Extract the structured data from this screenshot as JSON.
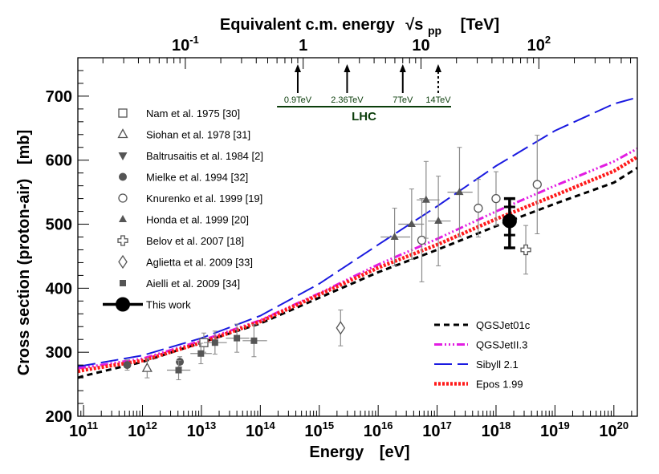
{
  "chart_data": {
    "type": "scatter",
    "title": "",
    "xlabel": "Energy",
    "xlabel_unit": "[eV]",
    "ylabel": "Cross section (proton-air)",
    "ylabel_unit": "[mb]",
    "x_scale": "log",
    "xlim": [
      80000000000.0,
      2.5e+20
    ],
    "ylim": [
      200,
      760
    ],
    "x_ticks": [
      {
        "label": "10",
        "exp": "11",
        "value": 100000000000.0
      },
      {
        "label": "10",
        "exp": "12",
        "value": 1000000000000.0
      },
      {
        "label": "10",
        "exp": "13",
        "value": 10000000000000.0
      },
      {
        "label": "10",
        "exp": "14",
        "value": 100000000000000.0
      },
      {
        "label": "10",
        "exp": "15",
        "value": 1000000000000000.0
      },
      {
        "label": "10",
        "exp": "16",
        "value": 1e+16
      },
      {
        "label": "10",
        "exp": "17",
        "value": 1e+17
      },
      {
        "label": "10",
        "exp": "18",
        "value": 1e+18
      },
      {
        "label": "10",
        "exp": "19",
        "value": 1e+19
      },
      {
        "label": "10",
        "exp": "20",
        "value": 1e+20
      }
    ],
    "y_ticks": [
      {
        "label": "200",
        "value": 200
      },
      {
        "label": "300",
        "value": 300
      },
      {
        "label": "400",
        "value": 400
      },
      {
        "label": "500",
        "value": 500
      },
      {
        "label": "600",
        "value": 600
      },
      {
        "label": "700",
        "value": 700
      }
    ],
    "top_axis": {
      "label": "Equivalent c.m. energy",
      "symbol": "√s",
      "symbol_sub": "pp",
      "unit": "[TeV]",
      "ticks": [
        {
          "label": "10",
          "exp": "-1",
          "tev": 0.1
        },
        {
          "label": "1",
          "exp": "",
          "tev": 1
        },
        {
          "label": "10",
          "exp": "",
          "tev": 10
        },
        {
          "label": "10",
          "exp": "2",
          "tev": 100
        }
      ]
    },
    "lhc": {
      "label": "LHC",
      "color": "#0b3d0b",
      "arrows": [
        {
          "label": "0.9TeV",
          "tev": 0.9,
          "dashed": false
        },
        {
          "label": "2.36TeV",
          "tev": 2.36,
          "dashed": false
        },
        {
          "label": "7TeV",
          "tev": 7,
          "dashed": false
        },
        {
          "label": "14TeV",
          "tev": 14,
          "dashed": true
        }
      ]
    },
    "series": [
      {
        "name": "Nam et al. 1975  [30]",
        "marker": "open-square",
        "color": "#555555",
        "points": [
          {
            "x": 11000000000000.0,
            "y": 315,
            "yerr": 15
          }
        ]
      },
      {
        "name": "Siohan et al. 1978  [31]",
        "marker": "open-triangle",
        "color": "#555555",
        "points": [
          {
            "x": 1200000000000.0,
            "y": 275,
            "yerr": 15
          }
        ]
      },
      {
        "name": "Baltrusaitis et al. 1984  [2]",
        "marker": "filled-triangle-down",
        "color": "#555555",
        "points": []
      },
      {
        "name": "Mielke et al. 1994  [32]",
        "marker": "filled-circle",
        "color": "#555555",
        "points": [
          {
            "x": 550000000000.0,
            "y": 280,
            "yerr": 8
          },
          {
            "x": 4300000000000.0,
            "y": 285,
            "yerr": 8
          }
        ]
      },
      {
        "name": "Knurenko et al. 1999  [19]",
        "marker": "open-circle",
        "color": "#555555",
        "points": [
          {
            "x": 5.5e+16,
            "y": 475,
            "yerr": 65
          },
          {
            "x": 5e+17,
            "y": 525,
            "yerr": 45
          },
          {
            "x": 1e+18,
            "y": 540,
            "yerr": 42
          },
          {
            "x": 5e+18,
            "y": 562,
            "yerr": 77
          }
        ]
      },
      {
        "name": "Honda et al. 1999  [20]",
        "marker": "filled-triangle",
        "color": "#555555",
        "points": [
          {
            "x": 1.9e+16,
            "y": 480,
            "yerr": 45,
            "xlo": 1.1e+16,
            "xhi": 3.5e+16
          },
          {
            "x": 3.7e+16,
            "y": 500,
            "yerr": 55,
            "xlo": 2.2e+16,
            "xhi": 6e+16
          },
          {
            "x": 6.5e+16,
            "y": 538,
            "yerr": 60,
            "xlo": 4.5e+16,
            "xhi": 1.1e+17
          },
          {
            "x": 1.05e+17,
            "y": 505,
            "yerr": 70,
            "xlo": 7e+16,
            "xhi": 1.7e+17
          },
          {
            "x": 2.4e+17,
            "y": 550,
            "yerr": 70,
            "xlo": 1.5e+17,
            "xhi": 4e+17
          }
        ]
      },
      {
        "name": "Belov et al. 2007  [18]",
        "marker": "open-cross",
        "color": "#555555",
        "points": [
          {
            "x": 3.2e+18,
            "y": 460,
            "yerr": 38
          }
        ]
      },
      {
        "name": "Aglietta et al. 2009  [33]",
        "marker": "open-diamond",
        "color": "#555555",
        "points": [
          {
            "x": 2300000000000000.0,
            "y": 338,
            "yerr": 28
          }
        ]
      },
      {
        "name": "Aielli et al. 2009  [34]",
        "marker": "filled-square",
        "color": "#555555",
        "points": [
          {
            "x": 4100000000000.0,
            "y": 272,
            "yerr": 15,
            "xlo": 2600000000000.0,
            "xhi": 6500000000000.0
          },
          {
            "x": 9800000000000.0,
            "y": 298,
            "yerr": 16,
            "xlo": 6500000000000.0,
            "xhi": 15000000000000.0
          },
          {
            "x": 17000000000000.0,
            "y": 315,
            "yerr": 18,
            "xlo": 11000000000000.0,
            "xhi": 27000000000000.0
          },
          {
            "x": 40000000000000.0,
            "y": 322,
            "yerr": 22,
            "xlo": 26000000000000.0,
            "xhi": 65000000000000.0
          },
          {
            "x": 78000000000000.0,
            "y": 318,
            "yerr": 25,
            "xlo": 50000000000000.0,
            "xhi": 130000000000000.0
          }
        ]
      },
      {
        "name": "This work",
        "marker": "big-circle",
        "color": "#000000",
        "points": [
          {
            "x": 1.7e+18,
            "y": 505,
            "yerr": 22,
            "ysys_hi": 35,
            "ysys_lo": 42
          }
        ]
      }
    ],
    "models": [
      {
        "name": "QGSJet01c",
        "color": "#000000",
        "style": "dashed",
        "x": [
          80000000000.0,
          100000000000.0,
          1000000000000.0,
          10000000000000.0,
          100000000000000.0,
          1000000000000000.0,
          1e+16,
          1e+17,
          1e+18,
          1e+19,
          1e+20,
          2.5e+20
        ],
        "y": [
          260,
          263,
          285,
          315,
          345,
          385,
          425,
          460,
          497,
          532,
          565,
          588
        ]
      },
      {
        "name": "QGSJetII.3",
        "color": "#e21ce2",
        "style": "dash-dot3",
        "x": [
          80000000000.0,
          100000000000.0,
          1000000000000.0,
          10000000000000.0,
          100000000000000.0,
          1000000000000000.0,
          1e+16,
          1e+17,
          1e+18,
          1e+19,
          1e+20,
          2.5e+20
        ],
        "y": [
          275,
          276,
          290,
          318,
          350,
          392,
          437,
          477,
          520,
          560,
          598,
          618
        ]
      },
      {
        "name": "Sibyll 2.1",
        "color": "#1a1ae0",
        "style": "long-dash",
        "x": [
          80000000000.0,
          100000000000.0,
          1000000000000.0,
          10000000000000.0,
          100000000000000.0,
          1000000000000000.0,
          1e+16,
          1e+17,
          1e+18,
          1e+19,
          1e+20,
          2.5e+20
        ],
        "y": [
          278,
          279,
          295,
          322,
          357,
          407,
          468,
          528,
          591,
          646,
          688,
          698
        ]
      },
      {
        "name": "Epos 1.99",
        "color": "#ff1a1a",
        "style": "dotted-thick",
        "x": [
          80000000000.0,
          100000000000.0,
          1000000000000.0,
          10000000000000.0,
          100000000000000.0,
          1000000000000000.0,
          1e+16,
          1e+17,
          1e+18,
          1e+19,
          1e+20,
          2.5e+20
        ],
        "y": [
          270,
          272,
          287,
          315,
          348,
          390,
          432,
          468,
          508,
          545,
          583,
          605
        ]
      }
    ]
  }
}
